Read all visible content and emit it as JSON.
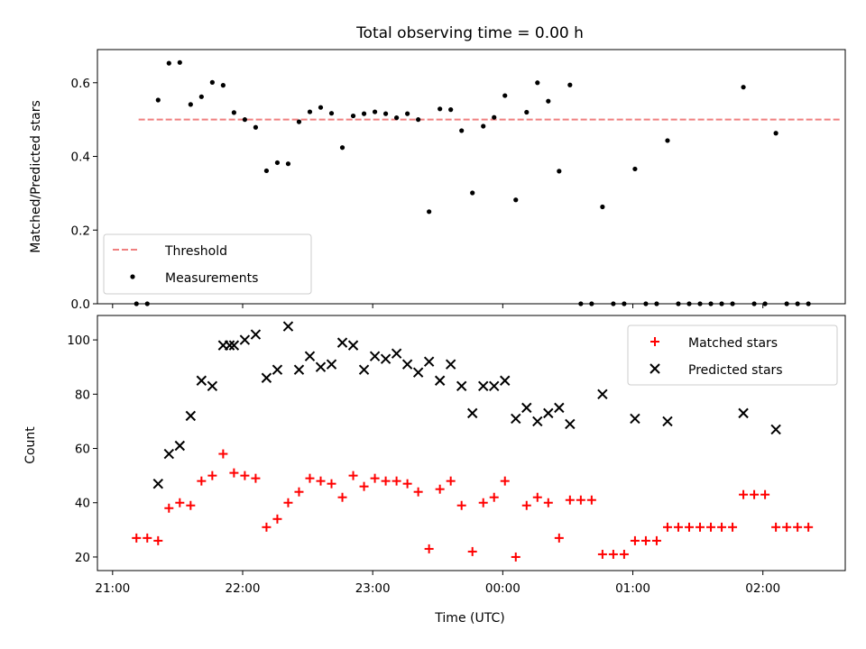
{
  "chart_data": [
    {
      "type": "scatter",
      "title": "Total observing time = 0.00 h",
      "xlabel": "",
      "ylabel": "Matched/Predicted stars",
      "ylim": [
        0,
        0.69
      ],
      "yticks": [
        "0.0",
        "0.2",
        "0.4",
        "0.6"
      ],
      "xlim": [
        "20:53",
        "02:38"
      ],
      "legend": "lower-left",
      "threshold": {
        "name": "Threshold",
        "value": 0.5,
        "x_start": "21:12",
        "x_end": "02:36",
        "color": "#f08080",
        "style": "dashed"
      },
      "series": [
        {
          "name": "Measurements",
          "color": "#000000",
          "marker": "dot",
          "points": [
            [
              "21:11",
              0.0
            ],
            [
              "21:16",
              0.0
            ],
            [
              "21:21",
              0.553
            ],
            [
              "21:26",
              0.653
            ],
            [
              "21:31",
              0.655
            ],
            [
              "21:36",
              0.541
            ],
            [
              "21:41",
              0.562
            ],
            [
              "21:46",
              0.601
            ],
            [
              "21:51",
              0.593
            ],
            [
              "21:56",
              0.519
            ],
            [
              "22:01",
              0.5
            ],
            [
              "22:06",
              0.479
            ],
            [
              "22:11",
              0.361
            ],
            [
              "22:16",
              0.383
            ],
            [
              "22:21",
              0.38
            ],
            [
              "22:26",
              0.494
            ],
            [
              "22:31",
              0.521
            ],
            [
              "22:36",
              0.533
            ],
            [
              "22:41",
              0.517
            ],
            [
              "22:46",
              0.424
            ],
            [
              "22:51",
              0.51
            ],
            [
              "22:56",
              0.516
            ],
            [
              "23:01",
              0.521
            ],
            [
              "23:06",
              0.516
            ],
            [
              "23:11",
              0.505
            ],
            [
              "23:16",
              0.516
            ],
            [
              "23:21",
              0.5
            ],
            [
              "23:26",
              0.25
            ],
            [
              "23:31",
              0.529
            ],
            [
              "23:36",
              0.527
            ],
            [
              "23:41",
              0.47
            ],
            [
              "23:46",
              0.301
            ],
            [
              "23:51",
              0.482
            ],
            [
              "23:56",
              0.506
            ],
            [
              "00:01",
              0.565
            ],
            [
              "00:06",
              0.282
            ],
            [
              "00:11",
              0.52
            ],
            [
              "00:16",
              0.6
            ],
            [
              "00:21",
              0.55
            ],
            [
              "00:26",
              0.36
            ],
            [
              "00:31",
              0.594
            ],
            [
              "00:36",
              0.0
            ],
            [
              "00:41",
              0.0
            ],
            [
              "00:46",
              0.263
            ],
            [
              "00:51",
              0.0
            ],
            [
              "00:56",
              0.0
            ],
            [
              "01:01",
              0.366
            ],
            [
              "01:06",
              0.0
            ],
            [
              "01:11",
              0.0
            ],
            [
              "01:16",
              0.443
            ],
            [
              "01:21",
              0.0
            ],
            [
              "01:26",
              0.0
            ],
            [
              "01:31",
              0.0
            ],
            [
              "01:36",
              0.0
            ],
            [
              "01:41",
              0.0
            ],
            [
              "01:46",
              0.0
            ],
            [
              "01:51",
              0.588
            ],
            [
              "01:56",
              0.0
            ],
            [
              "02:01",
              0.0
            ],
            [
              "02:06",
              0.463
            ],
            [
              "02:11",
              0.0
            ],
            [
              "02:16",
              0.0
            ],
            [
              "02:21",
              0.0
            ]
          ]
        }
      ]
    },
    {
      "type": "scatter",
      "title": "",
      "xlabel": "Time (UTC)",
      "ylabel": "Count",
      "ylim": [
        15,
        109
      ],
      "yticks": [
        "20",
        "40",
        "60",
        "80",
        "100"
      ],
      "xlim": [
        "20:53",
        "02:38"
      ],
      "xticks": [
        "21:00",
        "22:00",
        "23:00",
        "00:00",
        "01:00",
        "02:00"
      ],
      "legend": "top-right",
      "series": [
        {
          "name": "Matched stars",
          "color": "#ff0000",
          "marker": "plus",
          "points": [
            [
              "21:11",
              27
            ],
            [
              "21:16",
              27
            ],
            [
              "21:21",
              26
            ],
            [
              "21:26",
              38
            ],
            [
              "21:31",
              40
            ],
            [
              "21:36",
              39
            ],
            [
              "21:41",
              48
            ],
            [
              "21:46",
              50
            ],
            [
              "21:51",
              58
            ],
            [
              "21:56",
              51
            ],
            [
              "22:01",
              50
            ],
            [
              "22:06",
              49
            ],
            [
              "22:11",
              31
            ],
            [
              "22:16",
              34
            ],
            [
              "22:21",
              40
            ],
            [
              "22:26",
              44
            ],
            [
              "22:31",
              49
            ],
            [
              "22:36",
              48
            ],
            [
              "22:41",
              47
            ],
            [
              "22:46",
              42
            ],
            [
              "22:51",
              50
            ],
            [
              "22:56",
              46
            ],
            [
              "23:01",
              49
            ],
            [
              "23:06",
              48
            ],
            [
              "23:11",
              48
            ],
            [
              "23:16",
              47
            ],
            [
              "23:21",
              44
            ],
            [
              "23:26",
              23
            ],
            [
              "23:31",
              45
            ],
            [
              "23:36",
              48
            ],
            [
              "23:41",
              39
            ],
            [
              "23:46",
              22
            ],
            [
              "23:51",
              40
            ],
            [
              "23:56",
              42
            ],
            [
              "00:01",
              48
            ],
            [
              "00:06",
              20
            ],
            [
              "00:11",
              39
            ],
            [
              "00:16",
              42
            ],
            [
              "00:21",
              40
            ],
            [
              "00:26",
              27
            ],
            [
              "00:31",
              41
            ],
            [
              "00:36",
              41
            ],
            [
              "00:41",
              41
            ],
            [
              "00:46",
              21
            ],
            [
              "00:51",
              21
            ],
            [
              "00:56",
              21
            ],
            [
              "01:01",
              26
            ],
            [
              "01:06",
              26
            ],
            [
              "01:11",
              26
            ],
            [
              "01:16",
              31
            ],
            [
              "01:21",
              31
            ],
            [
              "01:26",
              31
            ],
            [
              "01:31",
              31
            ],
            [
              "01:36",
              31
            ],
            [
              "01:41",
              31
            ],
            [
              "01:46",
              31
            ],
            [
              "01:51",
              43
            ],
            [
              "01:56",
              43
            ],
            [
              "02:01",
              43
            ],
            [
              "02:06",
              31
            ],
            [
              "02:11",
              31
            ],
            [
              "02:16",
              31
            ],
            [
              "02:21",
              31
            ]
          ]
        },
        {
          "name": "Predicted stars",
          "color": "#000000",
          "marker": "x",
          "points": [
            [
              "21:21",
              47
            ],
            [
              "21:26",
              58
            ],
            [
              "21:31",
              61
            ],
            [
              "21:36",
              72
            ],
            [
              "21:41",
              85
            ],
            [
              "21:46",
              83
            ],
            [
              "21:51",
              98
            ],
            [
              "21:54",
              98
            ],
            [
              "21:56",
              98
            ],
            [
              "22:01",
              100
            ],
            [
              "22:06",
              102
            ],
            [
              "22:11",
              86
            ],
            [
              "22:16",
              89
            ],
            [
              "22:21",
              105
            ],
            [
              "22:26",
              89
            ],
            [
              "22:31",
              94
            ],
            [
              "22:36",
              90
            ],
            [
              "22:41",
              91
            ],
            [
              "22:46",
              99
            ],
            [
              "22:51",
              98
            ],
            [
              "22:56",
              89
            ],
            [
              "23:01",
              94
            ],
            [
              "23:06",
              93
            ],
            [
              "23:11",
              95
            ],
            [
              "23:16",
              91
            ],
            [
              "23:21",
              88
            ],
            [
              "23:26",
              92
            ],
            [
              "23:31",
              85
            ],
            [
              "23:36",
              91
            ],
            [
              "23:41",
              83
            ],
            [
              "23:46",
              73
            ],
            [
              "23:51",
              83
            ],
            [
              "23:56",
              83
            ],
            [
              "00:01",
              85
            ],
            [
              "00:06",
              71
            ],
            [
              "00:11",
              75
            ],
            [
              "00:16",
              70
            ],
            [
              "00:21",
              73
            ],
            [
              "00:26",
              75
            ],
            [
              "00:31",
              69
            ],
            [
              "00:46",
              80
            ],
            [
              "01:01",
              71
            ],
            [
              "01:16",
              70
            ],
            [
              "01:51",
              73
            ],
            [
              "02:06",
              67
            ]
          ]
        }
      ]
    }
  ]
}
